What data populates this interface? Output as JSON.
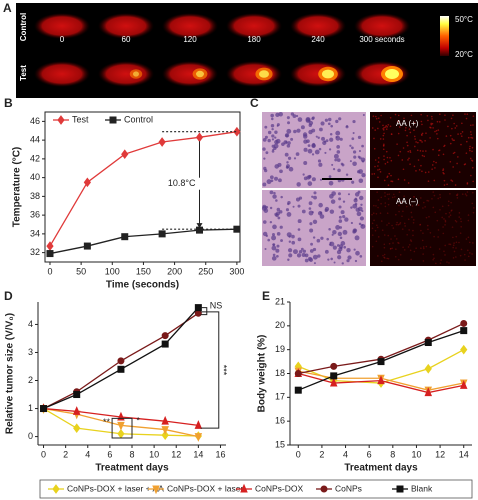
{
  "panel_a": {
    "label": "A",
    "rows": [
      "Control",
      "Test"
    ],
    "times": [
      "0",
      "60",
      "120",
      "180",
      "240",
      "300 seconds"
    ],
    "scale_max": "50°C",
    "scale_min": "20°C"
  },
  "panel_c": {
    "label": "C",
    "labels": [
      "AA (+)",
      "AA (–)"
    ]
  },
  "chart_data": [
    {
      "type": "line",
      "panel": "B",
      "xlabel": "Time (seconds)",
      "ylabel": "Temperature (°C)",
      "x": [
        0,
        60,
        120,
        180,
        240,
        300
      ],
      "xlim": [
        -8,
        305
      ],
      "ylim": [
        31,
        47
      ],
      "xticks": [
        0,
        50,
        100,
        150,
        200,
        250,
        300
      ],
      "yticks": [
        32,
        34,
        36,
        38,
        40,
        42,
        44,
        46
      ],
      "frame": "box",
      "legend": "upper left",
      "annotations": [
        "10.8°C"
      ],
      "series": [
        {
          "name": "Test",
          "color": "#e03a3a",
          "marker": "diamond",
          "values": [
            32.7,
            39.5,
            42.5,
            43.8,
            44.3,
            44.9
          ]
        },
        {
          "name": "Control",
          "color": "#222222",
          "marker": "square",
          "values": [
            31.9,
            32.7,
            33.7,
            34.0,
            34.4,
            34.5
          ]
        }
      ]
    },
    {
      "type": "line",
      "panel": "D",
      "xlabel": "Treatment days",
      "ylabel": "Relative tumor size (V/V₀)",
      "x": [
        0,
        3,
        7,
        11,
        14
      ],
      "xlim": [
        -0.5,
        16.5
      ],
      "ylim": [
        -0.3,
        4.8
      ],
      "xticks": [
        0,
        2,
        4,
        6,
        8,
        10,
        12,
        14,
        16
      ],
      "yticks": [
        0,
        1,
        2,
        3,
        4
      ],
      "frame": "axes",
      "legend": "below",
      "annotations": [
        "NS",
        "***",
        "**",
        "*"
      ],
      "series": [
        {
          "name": "CoNPs-DOX + laser + AA",
          "color": "#e8d21e",
          "marker": "diamond",
          "values": [
            1,
            0.3,
            0.1,
            0.05,
            0.02
          ]
        },
        {
          "name": "CoNPs-DOX + laser",
          "color": "#f0a030",
          "marker": "triangle-down",
          "values": [
            1,
            0.8,
            0.4,
            0.25,
            0.0
          ]
        },
        {
          "name": "CoNPs-DOX",
          "color": "#d62020",
          "marker": "triangle",
          "values": [
            1,
            0.9,
            0.7,
            0.55,
            0.4
          ]
        },
        {
          "name": "CoNPs",
          "color": "#7a1a1a",
          "marker": "circle",
          "values": [
            1,
            1.6,
            2.7,
            3.6,
            4.4
          ]
        },
        {
          "name": "Blank",
          "color": "#111111",
          "marker": "square",
          "values": [
            1,
            1.5,
            2.4,
            3.3,
            4.6
          ]
        }
      ]
    },
    {
      "type": "line",
      "panel": "E",
      "xlabel": "Treatment days",
      "ylabel": "Body weight (%)",
      "x": [
        0,
        3,
        7,
        11,
        14
      ],
      "xlim": [
        -0.7,
        14.7
      ],
      "ylim": [
        15,
        21
      ],
      "xticks": [
        0,
        2,
        4,
        6,
        8,
        10,
        12,
        14
      ],
      "yticks": [
        15,
        16,
        17,
        18,
        19,
        20,
        21
      ],
      "frame": "axes",
      "series": [
        {
          "name": "CoNPs-DOX + laser + AA",
          "color": "#e8d21e",
          "marker": "diamond",
          "values": [
            18.3,
            17.7,
            17.6,
            18.2,
            19.0
          ]
        },
        {
          "name": "CoNPs-DOX + laser",
          "color": "#f0a030",
          "marker": "triangle-down",
          "values": [
            18.1,
            17.8,
            17.8,
            17.3,
            17.6
          ]
        },
        {
          "name": "CoNPs-DOX",
          "color": "#d62020",
          "marker": "triangle",
          "values": [
            18.0,
            17.6,
            17.7,
            17.2,
            17.5
          ]
        },
        {
          "name": "CoNPs",
          "color": "#7a1a1a",
          "marker": "circle",
          "values": [
            18.0,
            18.3,
            18.6,
            19.4,
            20.1
          ]
        },
        {
          "name": "Blank",
          "color": "#111111",
          "marker": "square",
          "values": [
            17.3,
            17.9,
            18.5,
            19.3,
            19.8
          ]
        }
      ]
    }
  ]
}
